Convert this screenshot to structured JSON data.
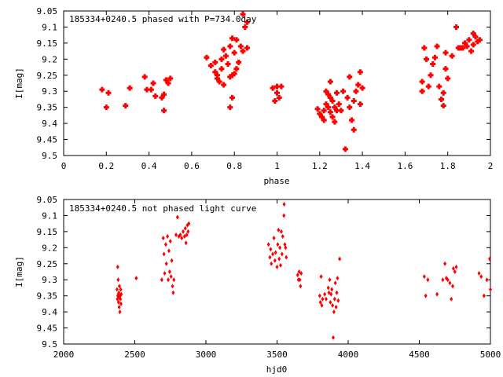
{
  "chart_data": [
    {
      "type": "scatter",
      "title": "185334+0240.5 phased with P=734.0day",
      "xlabel": "phase",
      "ylabel": "I[mag]",
      "xlim": [
        0,
        2
      ],
      "ylim": [
        9.5,
        9.05
      ],
      "y_inverted": true,
      "grid": false,
      "marker_color": "#ff0000",
      "marker": "plus",
      "x_ticks": [
        "0",
        "0.2",
        "0.4",
        "0.6",
        "0.8",
        "1",
        "1.2",
        "1.4",
        "1.6",
        "1.8",
        "2"
      ],
      "y_ticks": [
        "9.05",
        "9.1",
        "9.15",
        "9.2",
        "9.25",
        "9.3",
        "9.35",
        "9.4",
        "9.45",
        "9.5"
      ],
      "points": [
        [
          0.18,
          9.295
        ],
        [
          0.21,
          9.305
        ],
        [
          0.2,
          9.35
        ],
        [
          0.29,
          9.345
        ],
        [
          0.31,
          9.29
        ],
        [
          0.38,
          9.255
        ],
        [
          0.39,
          9.295
        ],
        [
          0.41,
          9.295
        ],
        [
          0.42,
          9.275
        ],
        [
          0.43,
          9.315
        ],
        [
          0.46,
          9.32
        ],
        [
          0.47,
          9.36
        ],
        [
          0.47,
          9.31
        ],
        [
          0.48,
          9.265
        ],
        [
          0.49,
          9.275
        ],
        [
          0.5,
          9.26
        ],
        [
          0.67,
          9.195
        ],
        [
          0.69,
          9.22
        ],
        [
          0.71,
          9.21
        ],
        [
          0.71,
          9.24
        ],
        [
          0.72,
          9.25
        ],
        [
          0.72,
          9.26
        ],
        [
          0.73,
          9.27
        ],
        [
          0.74,
          9.2
        ],
        [
          0.74,
          9.23
        ],
        [
          0.75,
          9.17
        ],
        [
          0.75,
          9.28
        ],
        [
          0.76,
          9.19
        ],
        [
          0.77,
          9.215
        ],
        [
          0.78,
          9.16
        ],
        [
          0.78,
          9.255
        ],
        [
          0.79,
          9.135
        ],
        [
          0.79,
          9.25
        ],
        [
          0.79,
          9.32
        ],
        [
          0.8,
          9.18
        ],
        [
          0.8,
          9.245
        ],
        [
          0.81,
          9.14
        ],
        [
          0.81,
          9.23
        ],
        [
          0.82,
          9.21
        ],
        [
          0.83,
          9.16
        ],
        [
          0.84,
          9.06
        ],
        [
          0.84,
          9.175
        ],
        [
          0.85,
          9.1
        ],
        [
          0.86,
          9.085
        ],
        [
          0.86,
          9.165
        ],
        [
          0.78,
          9.35
        ],
        [
          0.98,
          9.29
        ],
        [
          0.99,
          9.33
        ],
        [
          1.0,
          9.305
        ],
        [
          1.0,
          9.285
        ],
        [
          1.01,
          9.32
        ],
        [
          1.02,
          9.285
        ],
        [
          1.19,
          9.355
        ],
        [
          1.2,
          9.37
        ],
        [
          1.21,
          9.38
        ],
        [
          1.22,
          9.36
        ],
        [
          1.22,
          9.39
        ],
        [
          1.23,
          9.34
        ],
        [
          1.23,
          9.3
        ],
        [
          1.24,
          9.35
        ],
        [
          1.24,
          9.31
        ],
        [
          1.25,
          9.32
        ],
        [
          1.25,
          9.365
        ],
        [
          1.25,
          9.27
        ],
        [
          1.26,
          9.33
        ],
        [
          1.26,
          9.38
        ],
        [
          1.27,
          9.35
        ],
        [
          1.27,
          9.395
        ],
        [
          1.28,
          9.36
        ],
        [
          1.28,
          9.305
        ],
        [
          1.29,
          9.34
        ],
        [
          1.3,
          9.36
        ],
        [
          1.31,
          9.3
        ],
        [
          1.32,
          9.48
        ],
        [
          1.33,
          9.32
        ],
        [
          1.34,
          9.255
        ],
        [
          1.34,
          9.35
        ],
        [
          1.35,
          9.39
        ],
        [
          1.36,
          9.42
        ],
        [
          1.36,
          9.33
        ],
        [
          1.37,
          9.3
        ],
        [
          1.38,
          9.28
        ],
        [
          1.39,
          9.34
        ],
        [
          1.39,
          9.24
        ],
        [
          1.4,
          9.29
        ],
        [
          1.68,
          9.3
        ],
        [
          1.68,
          9.27
        ],
        [
          1.69,
          9.165
        ],
        [
          1.7,
          9.2
        ],
        [
          1.71,
          9.285
        ],
        [
          1.72,
          9.25
        ],
        [
          1.73,
          9.215
        ],
        [
          1.74,
          9.195
        ],
        [
          1.75,
          9.16
        ],
        [
          1.76,
          9.285
        ],
        [
          1.77,
          9.325
        ],
        [
          1.78,
          9.305
        ],
        [
          1.78,
          9.345
        ],
        [
          1.79,
          9.23
        ],
        [
          1.79,
          9.18
        ],
        [
          1.8,
          9.26
        ],
        [
          1.82,
          9.19
        ],
        [
          1.84,
          9.1
        ],
        [
          1.85,
          9.165
        ],
        [
          1.86,
          9.165
        ],
        [
          1.87,
          9.165
        ],
        [
          1.88,
          9.15
        ],
        [
          1.89,
          9.16
        ],
        [
          1.9,
          9.14
        ],
        [
          1.91,
          9.175
        ],
        [
          1.92,
          9.155
        ],
        [
          1.92,
          9.12
        ],
        [
          1.93,
          9.13
        ],
        [
          1.94,
          9.145
        ],
        [
          1.95,
          9.14
        ]
      ]
    },
    {
      "type": "scatter",
      "title": "185334+0240.5 not phased light curve",
      "xlabel": "hjd0",
      "ylabel": "I[mag]",
      "xlim": [
        2000,
        5000
      ],
      "ylim": [
        9.5,
        9.05
      ],
      "y_inverted": true,
      "grid": false,
      "marker_color": "#ff0000",
      "marker": "diamond",
      "x_ticks": [
        "2000",
        "2500",
        "3000",
        "3500",
        "4000",
        "4500",
        "5000"
      ],
      "y_ticks": [
        "9.05",
        "9.1",
        "9.15",
        "9.2",
        "9.25",
        "9.3",
        "9.35",
        "9.4",
        "9.45",
        "9.5"
      ],
      "points": [
        [
          2375,
          9.33
        ],
        [
          2378,
          9.36
        ],
        [
          2380,
          9.26
        ],
        [
          2381,
          9.35
        ],
        [
          2383,
          9.3
        ],
        [
          2385,
          9.345
        ],
        [
          2386,
          9.37
        ],
        [
          2388,
          9.34
        ],
        [
          2390,
          9.385
        ],
        [
          2392,
          9.32
        ],
        [
          2393,
          9.355
        ],
        [
          2395,
          9.4
        ],
        [
          2397,
          9.35
        ],
        [
          2399,
          9.36
        ],
        [
          2401,
          9.33
        ],
        [
          2403,
          9.375
        ],
        [
          2405,
          9.345
        ],
        [
          2510,
          9.295
        ],
        [
          2690,
          9.3
        ],
        [
          2700,
          9.17
        ],
        [
          2705,
          9.22
        ],
        [
          2710,
          9.28
        ],
        [
          2718,
          9.19
        ],
        [
          2722,
          9.25
        ],
        [
          2730,
          9.165
        ],
        [
          2735,
          9.3
        ],
        [
          2740,
          9.21
        ],
        [
          2745,
          9.275
        ],
        [
          2750,
          9.18
        ],
        [
          2755,
          9.29
        ],
        [
          2760,
          9.24
        ],
        [
          2765,
          9.32
        ],
        [
          2770,
          9.34
        ],
        [
          2775,
          9.3
        ],
        [
          2790,
          9.16
        ],
        [
          2800,
          9.105
        ],
        [
          2810,
          9.165
        ],
        [
          2820,
          9.16
        ],
        [
          2830,
          9.17
        ],
        [
          2840,
          9.15
        ],
        [
          2850,
          9.165
        ],
        [
          2855,
          9.14
        ],
        [
          2860,
          9.185
        ],
        [
          2865,
          9.16
        ],
        [
          2870,
          9.13
        ],
        [
          2875,
          9.15
        ],
        [
          2880,
          9.125
        ],
        [
          3440,
          9.19
        ],
        [
          3450,
          9.23
        ],
        [
          3455,
          9.205
        ],
        [
          3460,
          9.25
        ],
        [
          3470,
          9.22
        ],
        [
          3478,
          9.17
        ],
        [
          3485,
          9.24
        ],
        [
          3490,
          9.215
        ],
        [
          3500,
          9.26
        ],
        [
          3505,
          9.19
        ],
        [
          3510,
          9.145
        ],
        [
          3515,
          9.235
        ],
        [
          3520,
          9.2
        ],
        [
          3525,
          9.255
        ],
        [
          3530,
          9.15
        ],
        [
          3535,
          9.22
        ],
        [
          3540,
          9.165
        ],
        [
          3548,
          9.1
        ],
        [
          3550,
          9.065
        ],
        [
          3555,
          9.19
        ],
        [
          3560,
          9.2
        ],
        [
          3565,
          9.23
        ],
        [
          3645,
          9.285
        ],
        [
          3650,
          9.3
        ],
        [
          3655,
          9.275
        ],
        [
          3660,
          9.3
        ],
        [
          3665,
          9.32
        ],
        [
          3670,
          9.28
        ],
        [
          3800,
          9.35
        ],
        [
          3805,
          9.37
        ],
        [
          3810,
          9.29
        ],
        [
          3815,
          9.38
        ],
        [
          3820,
          9.36
        ],
        [
          3835,
          9.345
        ],
        [
          3845,
          9.36
        ],
        [
          3860,
          9.325
        ],
        [
          3865,
          9.34
        ],
        [
          3870,
          9.3
        ],
        [
          3875,
          9.37
        ],
        [
          3880,
          9.345
        ],
        [
          3885,
          9.33
        ],
        [
          3890,
          9.38
        ],
        [
          3895,
          9.48
        ],
        [
          3900,
          9.4
        ],
        [
          3905,
          9.36
        ],
        [
          3910,
          9.31
        ],
        [
          3915,
          9.385
        ],
        [
          3920,
          9.34
        ],
        [
          3925,
          9.295
        ],
        [
          3930,
          9.365
        ],
        [
          3940,
          9.235
        ],
        [
          4535,
          9.29
        ],
        [
          4545,
          9.35
        ],
        [
          4560,
          9.3
        ],
        [
          4625,
          9.345
        ],
        [
          4665,
          9.3
        ],
        [
          4680,
          9.25
        ],
        [
          4690,
          9.295
        ],
        [
          4700,
          9.3
        ],
        [
          4715,
          9.31
        ],
        [
          4725,
          9.36
        ],
        [
          4735,
          9.32
        ],
        [
          4740,
          9.265
        ],
        [
          4750,
          9.275
        ],
        [
          4760,
          9.26
        ],
        [
          4920,
          9.28
        ],
        [
          4935,
          9.29
        ],
        [
          4955,
          9.35
        ],
        [
          4975,
          9.3
        ],
        [
          4995,
          9.235
        ],
        [
          5000,
          9.33
        ]
      ]
    }
  ]
}
